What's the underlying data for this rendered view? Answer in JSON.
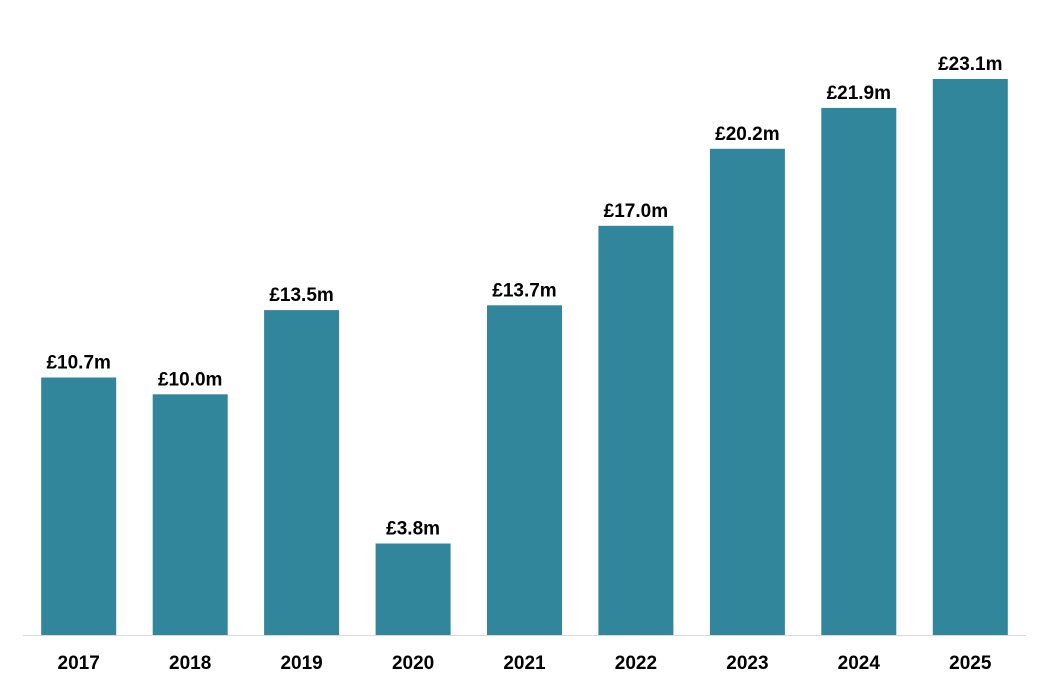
{
  "chart_data": {
    "type": "bar",
    "title": "",
    "xlabel": "",
    "ylabel": "",
    "categories": [
      "2017",
      "2018",
      "2019",
      "2020",
      "2021",
      "2022",
      "2023",
      "2024",
      "2025"
    ],
    "values": [
      10.7,
      10.0,
      13.5,
      3.8,
      13.7,
      17.0,
      20.2,
      21.9,
      23.1
    ],
    "value_labels": [
      "£10.7m",
      "£10.0m",
      "£13.5m",
      "£3.8m",
      "£13.7m",
      "£17.0m",
      "£20.2m",
      "£21.9m",
      "£23.1m"
    ],
    "ylim": [
      0,
      23.1
    ],
    "grid": false,
    "legend": "none",
    "colors": {
      "bar": "#31869b",
      "axis": "#d9d9d9",
      "text": "#000000"
    }
  }
}
